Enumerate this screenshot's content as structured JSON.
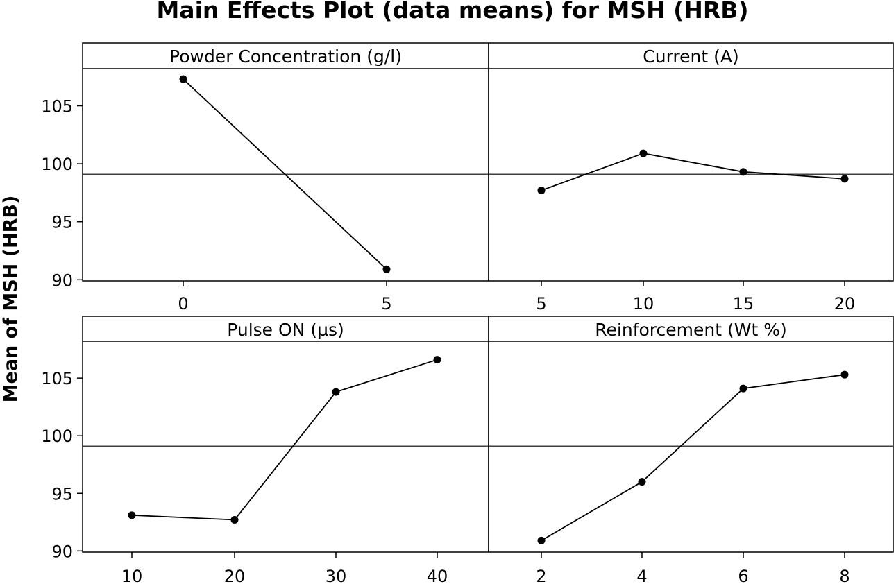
{
  "chart_data": {
    "type": "line",
    "title": "Main Effects Plot (data means) for MSH (HRB)",
    "ylabel": "Mean of MSH (HRB)",
    "ylim": [
      89.9,
      108.2
    ],
    "yticks": [
      90,
      95,
      100,
      105
    ],
    "grand_mean": 99.1,
    "grid": false,
    "legend": "none",
    "panels": [
      {
        "title": "Powder Concentration (g/l)",
        "x": [
          0,
          5
        ],
        "x_labels": [
          "0",
          "5"
        ],
        "values": [
          107.3,
          90.9
        ]
      },
      {
        "title": "Current (A)",
        "x": [
          5,
          10,
          15,
          20
        ],
        "x_labels": [
          "5",
          "10",
          "15",
          "20"
        ],
        "values": [
          97.7,
          100.9,
          99.3,
          98.7
        ]
      },
      {
        "title": "Pulse ON (µs)",
        "x": [
          10,
          20,
          30,
          40
        ],
        "x_labels": [
          "10",
          "20",
          "30",
          "40"
        ],
        "values": [
          93.1,
          92.7,
          103.8,
          106.6
        ]
      },
      {
        "title": "Reinforcement (Wt %)",
        "x": [
          2,
          4,
          6,
          8
        ],
        "x_labels": [
          "2",
          "4",
          "6",
          "8"
        ],
        "values": [
          90.9,
          96.0,
          104.1,
          105.3
        ]
      }
    ]
  }
}
